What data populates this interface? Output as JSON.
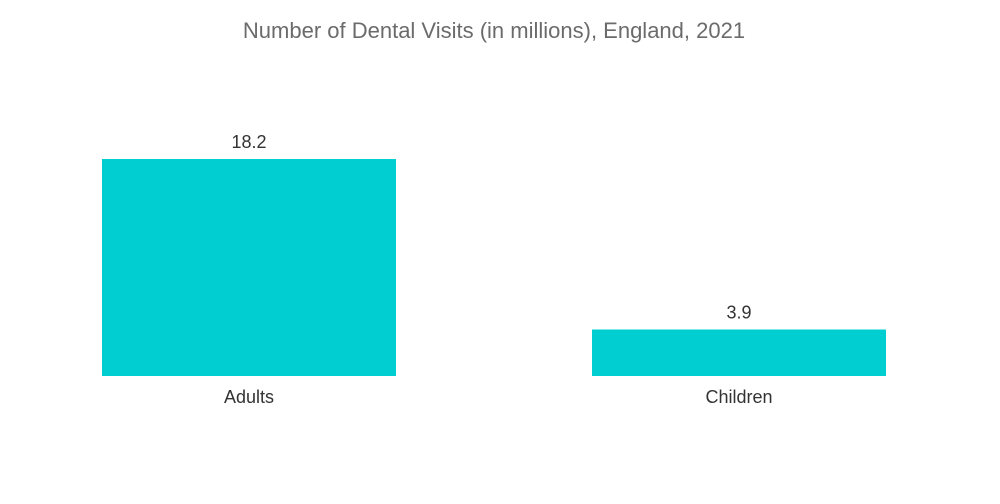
{
  "chart_data": {
    "type": "bar",
    "title": "Number of Dental Visits (in millions), England, 2021",
    "categories": [
      "Adults",
      "Children"
    ],
    "values": [
      18.2,
      3.9
    ],
    "data_labels": [
      "18.2",
      "3.9"
    ],
    "bar_color": "#00CED1",
    "ylim": [
      0,
      18.2
    ],
    "grid": false,
    "legend": "none"
  }
}
